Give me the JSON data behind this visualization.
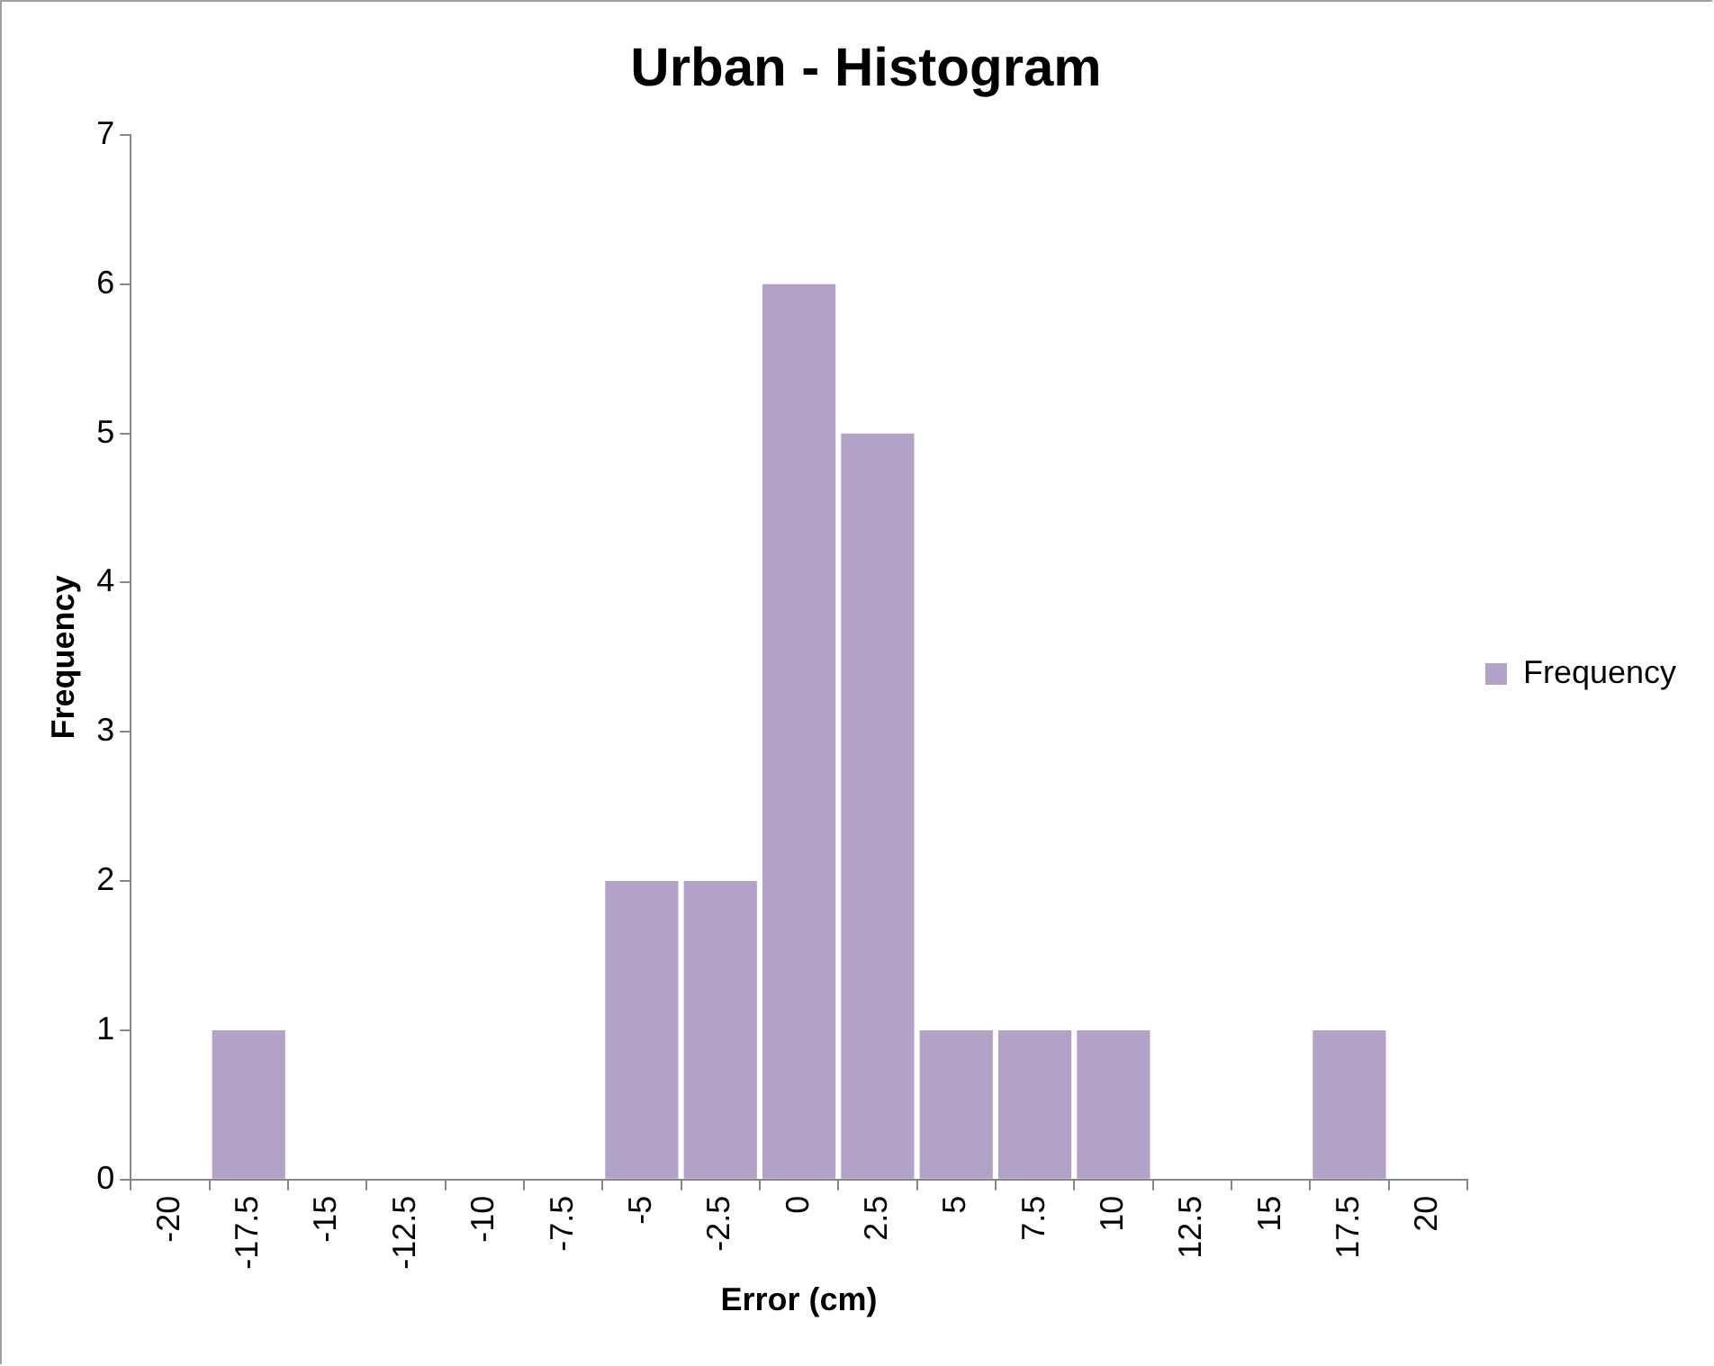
{
  "chart_data": {
    "type": "bar",
    "title": "Urban - Histogram",
    "xlabel": "Error (cm)",
    "ylabel": "Frequency",
    "categories": [
      "-20",
      "-17.5",
      "-15",
      "-12.5",
      "-10",
      "-7.5",
      "-5",
      "-2.5",
      "0",
      "2.5",
      "5",
      "7.5",
      "10",
      "12.5",
      "15",
      "17.5",
      "20"
    ],
    "series": [
      {
        "name": "Frequency",
        "color": "#b3a2c7",
        "values": [
          0,
          1,
          0,
          0,
          0,
          0,
          2,
          2,
          6,
          5,
          1,
          1,
          1,
          0,
          0,
          1,
          0
        ]
      }
    ],
    "ylim": [
      0,
      7
    ],
    "yticks": [
      0,
      1,
      2,
      3,
      4,
      5,
      6,
      7
    ],
    "grid": false,
    "legend": "right"
  }
}
